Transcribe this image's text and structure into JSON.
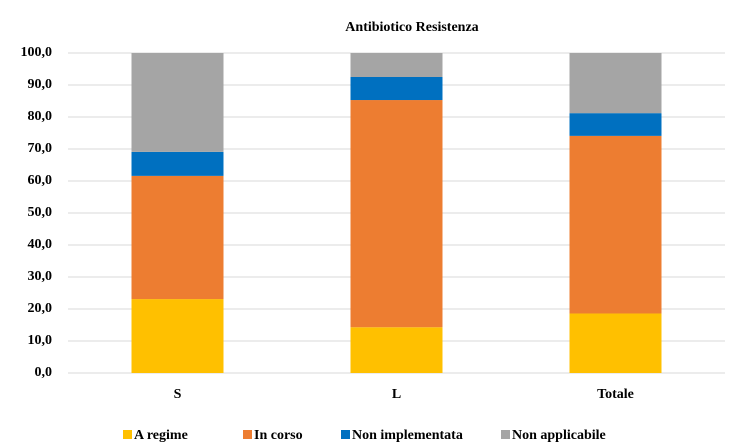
{
  "chart_data": {
    "type": "stacked_bar",
    "title": "Antibiotico Resistenza",
    "categories": [
      "S",
      "L",
      "Totale"
    ],
    "series": [
      {
        "name": "A regime",
        "color": "#FFC000",
        "values": [
          23.1,
          14.3,
          18.6
        ]
      },
      {
        "name": "In corso",
        "color": "#ED7D31",
        "values": [
          38.5,
          71.0,
          55.5
        ]
      },
      {
        "name": "Non implementata",
        "color": "#0070C0",
        "values": [
          7.5,
          7.2,
          7.1
        ]
      },
      {
        "name": "Non applicabile",
        "color": "#A5A5A5",
        "values": [
          30.9,
          7.5,
          18.8
        ]
      }
    ],
    "ylim": [
      0,
      100
    ],
    "yticks": [
      {
        "value": 0,
        "label": "0,0"
      },
      {
        "value": 10,
        "label": "10,0"
      },
      {
        "value": 20,
        "label": "20,0"
      },
      {
        "value": 30,
        "label": "30,0"
      },
      {
        "value": 40,
        "label": "40,0"
      },
      {
        "value": 50,
        "label": "50,0"
      },
      {
        "value": 60,
        "label": "60,0"
      },
      {
        "value": 70,
        "label": "70,0"
      },
      {
        "value": 80,
        "label": "80,0"
      },
      {
        "value": 90,
        "label": "90,0"
      },
      {
        "value": 100,
        "label": "100,0"
      }
    ],
    "grid": true,
    "legend": "bottom"
  }
}
